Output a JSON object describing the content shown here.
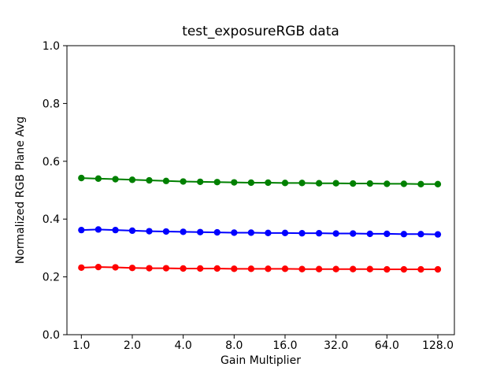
{
  "figure": {
    "background": "#ffffff",
    "axis_color": "#000000"
  },
  "chart_data": {
    "type": "line",
    "title": "test_exposureRGB data",
    "xlabel": "Gain Multiplier",
    "ylabel": "Normalized RGB Plane Avg",
    "x_scale": "log2",
    "grid": false,
    "legend": null,
    "ylim": [
      0.0,
      1.0
    ],
    "y_ticks": [
      0.0,
      0.2,
      0.4,
      0.6,
      0.8,
      1.0
    ],
    "y_tick_labels": [
      "0.0",
      "0.2",
      "0.4",
      "0.6",
      "0.8",
      "1.0"
    ],
    "x_ticks": [
      1.0,
      2.0,
      4.0,
      8.0,
      16.0,
      32.0,
      64.0,
      128.0
    ],
    "x_tick_labels": [
      "1.0",
      "2.0",
      "4.0",
      "8.0",
      "16.0",
      "32.0",
      "64.0",
      "128.0"
    ],
    "x": [
      1.0,
      1.26,
      1.59,
      2.0,
      2.52,
      3.17,
      4.0,
      5.04,
      6.35,
      8.0,
      10.08,
      12.7,
      16.0,
      20.16,
      25.4,
      32.0,
      40.32,
      50.8,
      64.0,
      80.63,
      101.59,
      128.0
    ],
    "series": [
      {
        "name": "green",
        "color": "#008000",
        "values": [
          0.542,
          0.54,
          0.538,
          0.536,
          0.534,
          0.532,
          0.53,
          0.529,
          0.528,
          0.527,
          0.526,
          0.526,
          0.525,
          0.525,
          0.524,
          0.524,
          0.523,
          0.523,
          0.522,
          0.522,
          0.521,
          0.521
        ]
      },
      {
        "name": "blue",
        "color": "#0000ff",
        "values": [
          0.362,
          0.364,
          0.362,
          0.36,
          0.358,
          0.357,
          0.356,
          0.355,
          0.354,
          0.353,
          0.353,
          0.352,
          0.352,
          0.351,
          0.351,
          0.35,
          0.35,
          0.349,
          0.349,
          0.348,
          0.348,
          0.347
        ]
      },
      {
        "name": "red",
        "color": "#ff0000",
        "values": [
          0.232,
          0.234,
          0.233,
          0.231,
          0.23,
          0.23,
          0.229,
          0.229,
          0.229,
          0.228,
          0.228,
          0.228,
          0.228,
          0.227,
          0.227,
          0.227,
          0.227,
          0.227,
          0.226,
          0.226,
          0.226,
          0.226
        ]
      }
    ],
    "marker": "circle",
    "marker_size": 8.3,
    "line_width": 2
  }
}
